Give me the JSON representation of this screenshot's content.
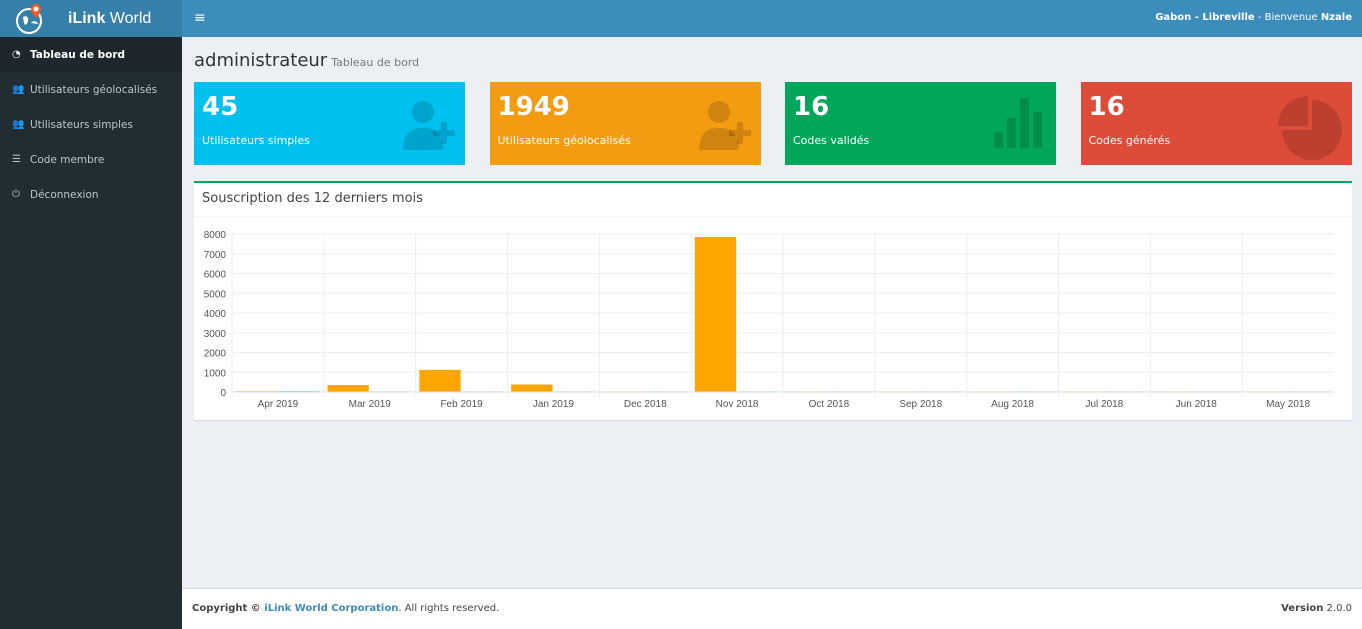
{
  "brand": {
    "bold": "iLink",
    "rest": " World"
  },
  "header": {
    "location": "Gabon - Libreville",
    "greeting": " - Bienvenue ",
    "user": "Nzale"
  },
  "sidebar": {
    "items": [
      {
        "label": "Tableau de bord",
        "icon": "dashboard-icon",
        "active": true
      },
      {
        "label": "Utilisateurs géolocalisés",
        "icon": "users-icon"
      },
      {
        "label": "Utilisateurs simples",
        "icon": "users-icon"
      },
      {
        "label": "Code membre",
        "icon": "database-icon"
      },
      {
        "label": "Déconnexion",
        "icon": "power-icon"
      }
    ]
  },
  "page": {
    "title": "administrateur",
    "subtitle": "Tableau de bord"
  },
  "boxes": [
    {
      "value": "45",
      "label": "Utilisateurs simples",
      "color": "#00c0ef",
      "icon": "user-plus-icon"
    },
    {
      "value": "1949",
      "label": "Utilisateurs géolocalisés",
      "color": "#f39c12",
      "icon": "user-plus-icon"
    },
    {
      "value": "16",
      "label": "Codes validés",
      "color": "#00a65a",
      "icon": "bar-chart-icon"
    },
    {
      "value": "16",
      "label": "Codes générés",
      "color": "#dd4b39",
      "icon": "pie-chart-icon"
    }
  ],
  "panel": {
    "title": "Souscription des 12 derniers mois"
  },
  "chart_data": {
    "type": "bar",
    "categories": [
      "Apr 2019",
      "Mar 2019",
      "Feb 2019",
      "Jan 2019",
      "Dec 2018",
      "Nov 2018",
      "Oct 2018",
      "Sep 2018",
      "Aug 2018",
      "Jul 2018",
      "Jun 2018",
      "May 2018"
    ],
    "series": [
      {
        "color": "#ffa500",
        "values": [
          40,
          350,
          1120,
          380,
          30,
          7850,
          30,
          30,
          30,
          30,
          30,
          30
        ]
      },
      {
        "color": "#1ab7ea",
        "values": [
          40,
          30,
          30,
          30,
          30,
          30,
          30,
          30,
          30,
          30,
          30,
          30
        ]
      }
    ],
    "ylim": [
      0,
      8000
    ],
    "yticks": [
      0,
      1000,
      2000,
      3000,
      4000,
      5000,
      6000,
      7000,
      8000
    ],
    "grid": true
  },
  "footer": {
    "prefix": "Copyright © ",
    "company": "iLink World Corporation",
    "suffix": ". All rights reserved.",
    "version_label": "Version",
    "version": " 2.0.0"
  }
}
